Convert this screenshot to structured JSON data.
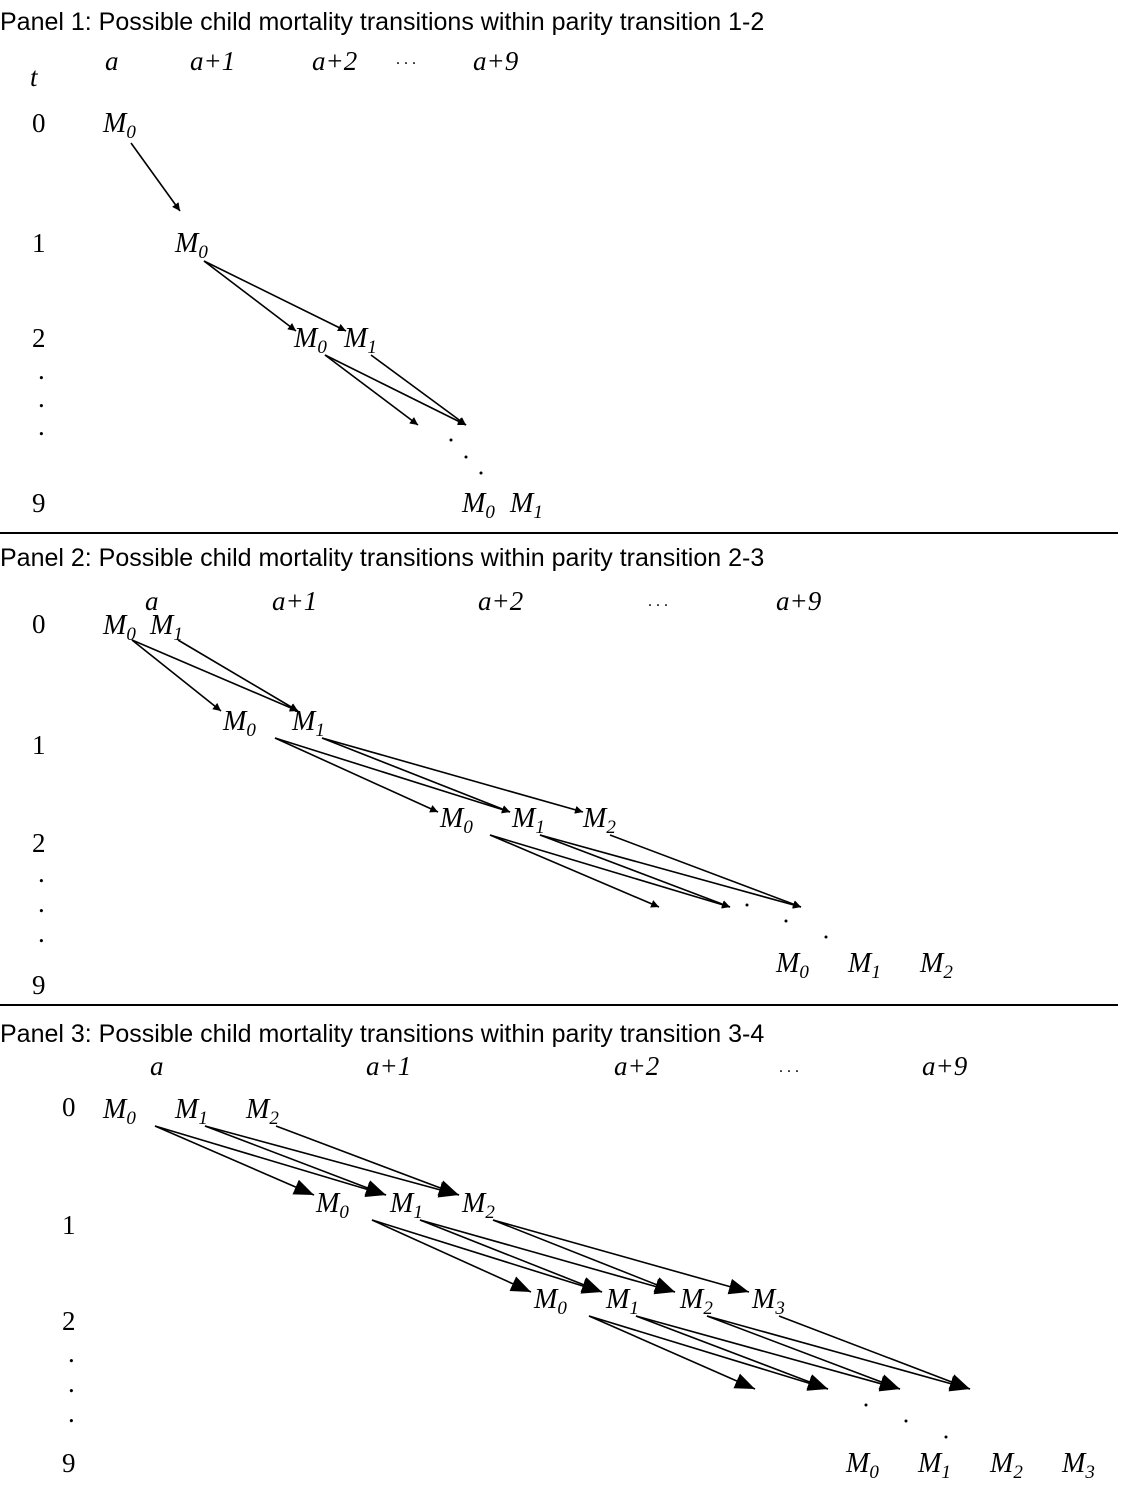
{
  "panels": [
    {
      "title": "Panel 1: Possible child mortality transitions within parity transition 1-2",
      "t_label": "t",
      "age_labels": [
        "a",
        "a+1",
        "a+2",
        ". . .",
        "a+9"
      ],
      "time_labels": [
        "0",
        "1",
        "2",
        ".",
        ".",
        ".",
        "9"
      ],
      "nodes": [
        "M0",
        "M0",
        "M0",
        "M1",
        "M0",
        "M1"
      ]
    },
    {
      "title": "Panel 2: Possible child mortality transitions within parity transition 2-3",
      "age_labels": [
        "a",
        "a+1",
        "a+2",
        ". . .",
        "a+9"
      ],
      "time_labels": [
        "0",
        "1",
        "2",
        ".",
        ".",
        ".",
        "9"
      ],
      "nodes": [
        "M0",
        "M1",
        "M0",
        "M1",
        "M0",
        "M1",
        "M2",
        "M0",
        "M1",
        "M2"
      ]
    },
    {
      "title": "Panel 3: Possible child mortality transitions within parity transition 3-4",
      "age_labels": [
        "a",
        "a+1",
        "a+2",
        ". . .",
        "a+9"
      ],
      "time_labels": [
        "0",
        "1",
        "2",
        ".",
        ".",
        ".",
        "9"
      ],
      "nodes": [
        "M0",
        "M1",
        "M2",
        "M0",
        "M1",
        "M2",
        "M0",
        "M1",
        "M2",
        "M3",
        "M0",
        "M1",
        "M2",
        "M3"
      ]
    }
  ]
}
